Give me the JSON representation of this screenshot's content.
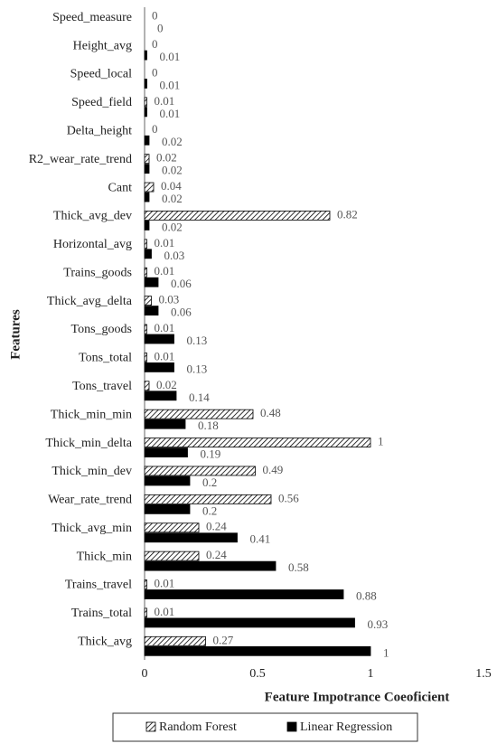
{
  "chart_data": {
    "type": "barh",
    "x_label": "Feature Impotrance Coeoficient",
    "y_label": "Features",
    "categories": [
      "Speed_measure",
      "Height_avg",
      "Speed_local",
      "Speed_field",
      "Delta_height",
      "R2_wear_rate_trend",
      "Cant",
      "Thick_avg_dev",
      "Horizontal_avg",
      "Trains_goods",
      "Thick_avg_delta",
      "Tons_goods",
      "Tons_total",
      "Tons_travel",
      "Thick_min_min",
      "Thick_min_delta",
      "Thick_min_dev",
      "Wear_rate_trend",
      "Thick_avg_min",
      "Thick_min",
      "Trains_travel",
      "Trains_total",
      "Thick_avg"
    ],
    "series": [
      {
        "name": "Random Forest",
        "color": "#000000",
        "pattern": "hatch",
        "values": [
          0,
          0,
          0,
          0.01,
          0,
          0.02,
          0.04,
          0.82,
          0.01,
          0.01,
          0.03,
          0.01,
          0.01,
          0.02,
          0.48,
          1,
          0.49,
          0.56,
          0.24,
          0.24,
          0.01,
          0.01,
          0.27
        ]
      },
      {
        "name": "Linear Regression",
        "color": "#000000",
        "pattern": "solid",
        "values": [
          0,
          0.01,
          0.01,
          0.01,
          0.02,
          0.02,
          0.02,
          0.02,
          0.03,
          0.06,
          0.06,
          0.13,
          0.13,
          0.14,
          0.18,
          0.19,
          0.2,
          0.2,
          0.41,
          0.58,
          0.88,
          0.93,
          1
        ]
      }
    ],
    "xlim": [
      0,
      1.5
    ],
    "xticks": [
      0,
      0.5,
      1,
      1.5
    ],
    "grid": false,
    "legend": "bottom"
  }
}
